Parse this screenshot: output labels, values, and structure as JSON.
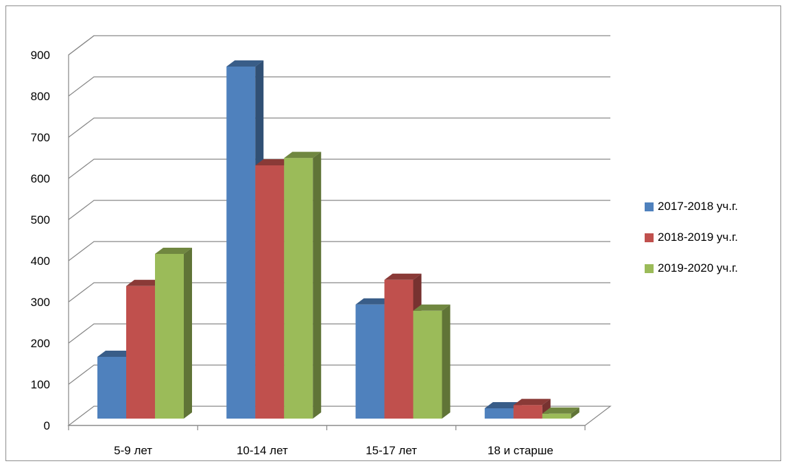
{
  "chart_data": {
    "type": "bar",
    "categories": [
      "5-9 лет",
      "10-14 лет",
      "15-17 лет",
      "18 и старше"
    ],
    "series": [
      {
        "name": "2017-2018 уч.г.",
        "values": [
          150,
          855,
          277,
          25
        ],
        "color": "#4F81BD"
      },
      {
        "name": "2018-2019 уч.г.",
        "values": [
          322,
          615,
          337,
          33
        ],
        "color": "#C0504D"
      },
      {
        "name": "2019-2020 уч.г.",
        "values": [
          400,
          633,
          262,
          12
        ],
        "color": "#9BBB59"
      }
    ],
    "yticks": [
      "0",
      "100",
      "200",
      "300",
      "400",
      "500",
      "600",
      "700",
      "800",
      "900"
    ],
    "ylim": [
      0,
      900
    ],
    "grid": true,
    "legend_position": "right",
    "style": "3d-clustered-column"
  }
}
